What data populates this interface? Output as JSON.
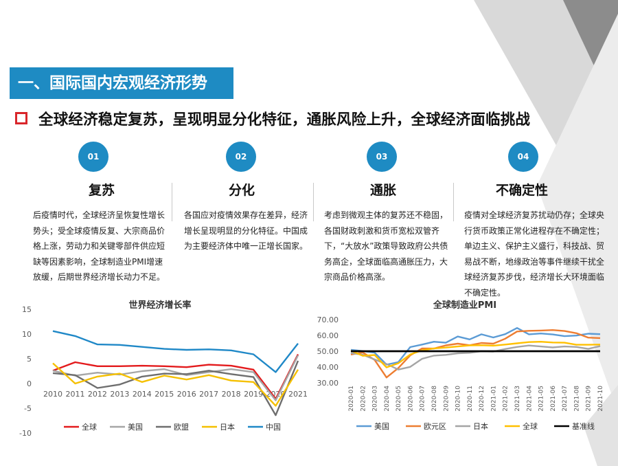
{
  "section_title": "一、国际国内宏观经济形势",
  "subtitle": "全球经济稳定复苏，呈现明显分化特征，通胀风险上升，全球经济面临挑战",
  "columns": [
    {
      "num": "01",
      "heading": "复苏",
      "body": "后疫情时代，全球经济呈恢复性增长势头；受全球疫情反复、大宗商品价格上涨，劳动力和关键零部件供应短缺等因素影响，全球制造业PMI增速放缓，后期世界经济增长动力不足。"
    },
    {
      "num": "02",
      "heading": "分化",
      "body": "各国应对疫情效果存在差异，经济增长呈现明显的分化特征。中国成为主要经济体中唯一正增长国家。"
    },
    {
      "num": "03",
      "heading": "通胀",
      "body": "考虑到微观主体的复苏还不稳固，各国财政刺激和货币宽松双管齐下，“大放水”政策导致政府公共债务高企，全球面临高通胀压力，大宗商品价格高涨。"
    },
    {
      "num": "04",
      "heading": "不确定性",
      "body": "疫情对全球经济复苏扰动仍存；全球央行货币政策正常化进程存在不确定性；单边主义、保护主义盛行，科技战、贸易战不断，地缘政治等事件继续干扰全球经济复苏步伐，经济增长大环境面临不确定性。"
    }
  ],
  "colors": {
    "accent": "#1e8bc3",
    "bullet": "#d9262b"
  },
  "chart_data": [
    {
      "type": "line",
      "title": "世界经济增长率",
      "x": [
        "2010",
        "2011",
        "2012",
        "2013",
        "2014",
        "2015",
        "2016",
        "2017",
        "2018",
        "2019",
        "2020",
        "2021"
      ],
      "ylim": [
        -10,
        15
      ],
      "yticks": [
        -10,
        -5,
        0,
        5,
        10,
        15
      ],
      "grid": false,
      "legend_position": "bottom",
      "series": [
        {
          "name": "全球",
          "color": "#e31a1c",
          "values": [
            2.6,
            4.3,
            3.5,
            3.5,
            3.6,
            3.5,
            3.3,
            3.8,
            3.6,
            2.8,
            -3.1,
            5.9
          ]
        },
        {
          "name": "美国",
          "color": "#a6a6a6",
          "values": [
            2.6,
            1.6,
            2.2,
            1.8,
            2.5,
            2.9,
            1.7,
            2.3,
            2.9,
            2.3,
            -3.4,
            5.7
          ]
        },
        {
          "name": "欧盟",
          "color": "#6e6e6e",
          "values": [
            2.1,
            1.7,
            -0.9,
            -0.2,
            1.4,
            2.0,
            1.9,
            2.6,
            1.9,
            1.3,
            -6.4,
            4.6
          ]
        },
        {
          "name": "日本",
          "color": "#f5c000",
          "values": [
            4.1,
            0.0,
            1.4,
            2.0,
            0.3,
            1.6,
            0.8,
            1.7,
            0.6,
            0.3,
            -4.5,
            2.8
          ]
        },
        {
          "name": "中国",
          "color": "#1f88c7",
          "values": [
            10.6,
            9.6,
            7.9,
            7.8,
            7.4,
            7.0,
            6.8,
            6.9,
            6.7,
            5.9,
            2.3,
            8.1
          ]
        }
      ]
    },
    {
      "type": "line",
      "title": "全球制造业PMI",
      "x": [
        "2020-01",
        "2020-02",
        "2020-03",
        "2020-04",
        "2020-05",
        "2020-06",
        "2020-07",
        "2020-08",
        "2020-09",
        "2020-10",
        "2020-11",
        "2020-12",
        "2021-01",
        "2021-02",
        "2021-03",
        "2021-04",
        "2021-05",
        "2021-06",
        "2021-07",
        "2021-08",
        "2021-09",
        "2021-10"
      ],
      "ylim": [
        30,
        70
      ],
      "yticks": [
        "30.00",
        "40.00",
        "50.00",
        "60.00",
        "70.00"
      ],
      "grid": false,
      "legend_position": "bottom",
      "series": [
        {
          "name": "美国",
          "color": "#5b9bd5",
          "values": [
            50.9,
            50.1,
            49.1,
            41.5,
            43.1,
            52.6,
            54.2,
            56.0,
            55.4,
            59.3,
            57.5,
            60.7,
            58.7,
            60.8,
            64.7,
            60.7,
            61.2,
            60.6,
            59.5,
            59.9,
            61.1,
            60.8
          ]
        },
        {
          "name": "欧元区",
          "color": "#ed7d31",
          "values": [
            47.9,
            49.2,
            44.5,
            33.4,
            39.4,
            47.4,
            51.8,
            51.7,
            53.7,
            54.8,
            53.8,
            55.2,
            54.8,
            57.9,
            62.5,
            62.9,
            63.1,
            63.4,
            62.8,
            61.4,
            58.6,
            58.3
          ]
        },
        {
          "name": "日本",
          "color": "#a5a5a5",
          "values": [
            48.8,
            47.8,
            44.8,
            41.9,
            38.4,
            40.1,
            45.2,
            47.2,
            47.7,
            48.7,
            49.0,
            50.0,
            49.8,
            51.4,
            52.7,
            53.6,
            53.0,
            52.4,
            53.0,
            52.7,
            51.5,
            53.2
          ]
        },
        {
          "name": "全球",
          "color": "#ffc000",
          "values": [
            50.4,
            47.1,
            47.6,
            39.8,
            42.4,
            47.9,
            50.6,
            51.8,
            52.3,
            53.0,
            53.7,
            53.8,
            53.5,
            54.2,
            55.0,
            55.8,
            56.0,
            55.5,
            55.4,
            54.1,
            54.1,
            54.2
          ]
        },
        {
          "name": "基准线",
          "color": "#000000",
          "values": [
            50,
            50,
            50,
            50,
            50,
            50,
            50,
            50,
            50,
            50,
            50,
            50,
            50,
            50,
            50,
            50,
            50,
            50,
            50,
            50,
            50,
            50
          ]
        }
      ]
    }
  ]
}
